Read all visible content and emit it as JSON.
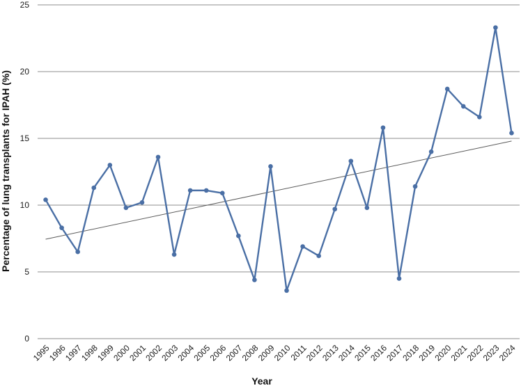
{
  "chart_data": {
    "type": "line",
    "title": "",
    "xlabel": "Year",
    "ylabel": "Percentage of lung transplants for IPAH (%)",
    "categories": [
      "1995",
      "1996",
      "1997",
      "1998",
      "1999",
      "2000",
      "2001",
      "2002",
      "2003",
      "2004",
      "2005",
      "2006",
      "2007",
      "2008",
      "2009",
      "2010",
      "2011",
      "2012",
      "2013",
      "2014",
      "2015",
      "2016",
      "2017",
      "2018",
      "2019",
      "2020",
      "2021",
      "2022",
      "2023",
      "2024"
    ],
    "series": [
      {
        "values": [
          10.4,
          8.3,
          6.5,
          11.3,
          13.0,
          9.8,
          10.2,
          13.6,
          6.3,
          11.1,
          11.1,
          10.9,
          7.7,
          4.4,
          12.9,
          3.6,
          6.9,
          6.2,
          9.7,
          13.3,
          9.8,
          15.8,
          4.5,
          11.4,
          14.0,
          18.7,
          17.4,
          16.6,
          23.3,
          15.4
        ],
        "color": "#4a6fa5"
      }
    ],
    "trendline": {
      "start": 7.45,
      "end": 14.8,
      "color": "#5a5a5a"
    },
    "ylim": [
      0,
      25
    ],
    "yticks": [
      0,
      5,
      10,
      15,
      20,
      25
    ],
    "grid": true,
    "legend": "none"
  }
}
